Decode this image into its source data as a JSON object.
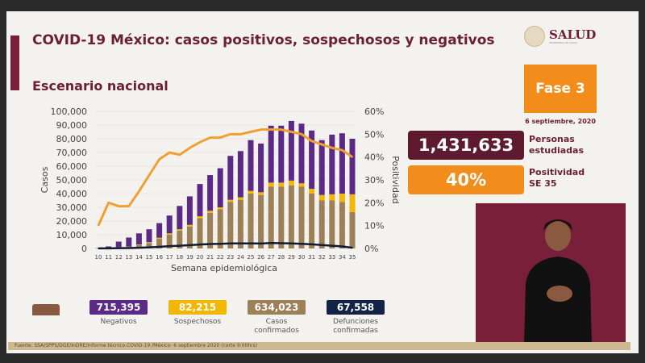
{
  "title": "COVID-19 México: casos positivos, sospechosos y negativos",
  "subtitle": "Escenario nacional",
  "logo": {
    "text": "SALUD",
    "subtext": "SECRETARÍA DE SALUD"
  },
  "phase": "Fase 3",
  "date": "6 septiembre, 2020",
  "kpis": [
    {
      "value": "1,431,633",
      "label1": "Personas",
      "label2": "estudiadas",
      "color": "#5e1a2e"
    },
    {
      "value": "40%",
      "label1": "Positividad",
      "label2": "SE 35",
      "color": "#f28c1a"
    }
  ],
  "summary": [
    {
      "value": "715,395",
      "label": "Negativos",
      "color": "#5b2a86"
    },
    {
      "value": "82,215",
      "label": "Sospechosos",
      "color": "#f2b705"
    },
    {
      "value": "634,023",
      "label": "Casos confirmados",
      "color": "#9c8058"
    },
    {
      "value": "67,558",
      "label": "Defunciones confirmadas",
      "color": "#132347"
    }
  ],
  "source": "Fuente: SSA/SPPS/DGE/InDRE/Informe técnico.COVID-19 /México- 6 septiembre 2020 (corte 9:00hrs)",
  "chart_data": {
    "type": "bar",
    "stacked": true,
    "xlabel": "Semana epidemiológica",
    "ylabel": "Casos",
    "y2label": "Positividad",
    "ylim": [
      0,
      100000
    ],
    "y2lim": [
      0,
      60
    ],
    "yticks": [
      "0",
      "10,000",
      "20,000",
      "30,000",
      "40,000",
      "50,000",
      "60,000",
      "70,000",
      "80,000",
      "90,000",
      "100,000"
    ],
    "y2ticks": [
      "0%",
      "10%",
      "20%",
      "30%",
      "40%",
      "50%",
      "60%"
    ],
    "categories": [
      "10",
      "11",
      "12",
      "13",
      "14",
      "15",
      "16",
      "17",
      "18",
      "19",
      "20",
      "21",
      "22",
      "23",
      "24",
      "25",
      "26",
      "27",
      "28",
      "29",
      "30",
      "31",
      "32",
      "33",
      "34",
      "35"
    ],
    "series": [
      {
        "key": "confirmados",
        "color": "#9c8058",
        "values": [
          100,
          300,
          800,
          1000,
          2500,
          4000,
          7000,
          10000,
          13000,
          16000,
          22000,
          26000,
          28500,
          34000,
          35500,
          40000,
          39000,
          45000,
          45000,
          46000,
          45000,
          40000,
          35000,
          35000,
          34000,
          26500
        ]
      },
      {
        "key": "sospechosos",
        "color": "#f2b705",
        "values": [
          50,
          100,
          200,
          300,
          400,
          600,
          800,
          1000,
          1000,
          1200,
          1500,
          1500,
          1500,
          1500,
          1800,
          2000,
          2000,
          3000,
          3000,
          3500,
          2500,
          3500,
          4000,
          4500,
          6000,
          13000
        ]
      },
      {
        "key": "negativos",
        "color": "#5b2a86",
        "values": [
          200,
          1100,
          4000,
          6700,
          8100,
          9400,
          10700,
          13000,
          17000,
          20800,
          23500,
          26000,
          28500,
          32000,
          33700,
          37000,
          35500,
          41500,
          41500,
          43500,
          43500,
          42500,
          40000,
          43500,
          44000,
          40500
        ]
      }
    ],
    "lines": [
      {
        "key": "defunciones",
        "axis": "left",
        "color": "#111a33",
        "values": [
          50,
          100,
          200,
          300,
          500,
          800,
          1200,
          1700,
          2000,
          2400,
          2900,
          3200,
          3400,
          3700,
          3700,
          3700,
          3600,
          4000,
          3800,
          3700,
          3400,
          3000,
          2500,
          2000,
          1500,
          500
        ]
      },
      {
        "key": "positividad",
        "axis": "right",
        "color": "#f0a030",
        "values": [
          10,
          20,
          18.5,
          18.5,
          25,
          32,
          39,
          42,
          41,
          44,
          46.5,
          48.5,
          48.5,
          50,
          50,
          51,
          52,
          52,
          52,
          51,
          50,
          47,
          45.5,
          44,
          43,
          40
        ]
      }
    ]
  }
}
